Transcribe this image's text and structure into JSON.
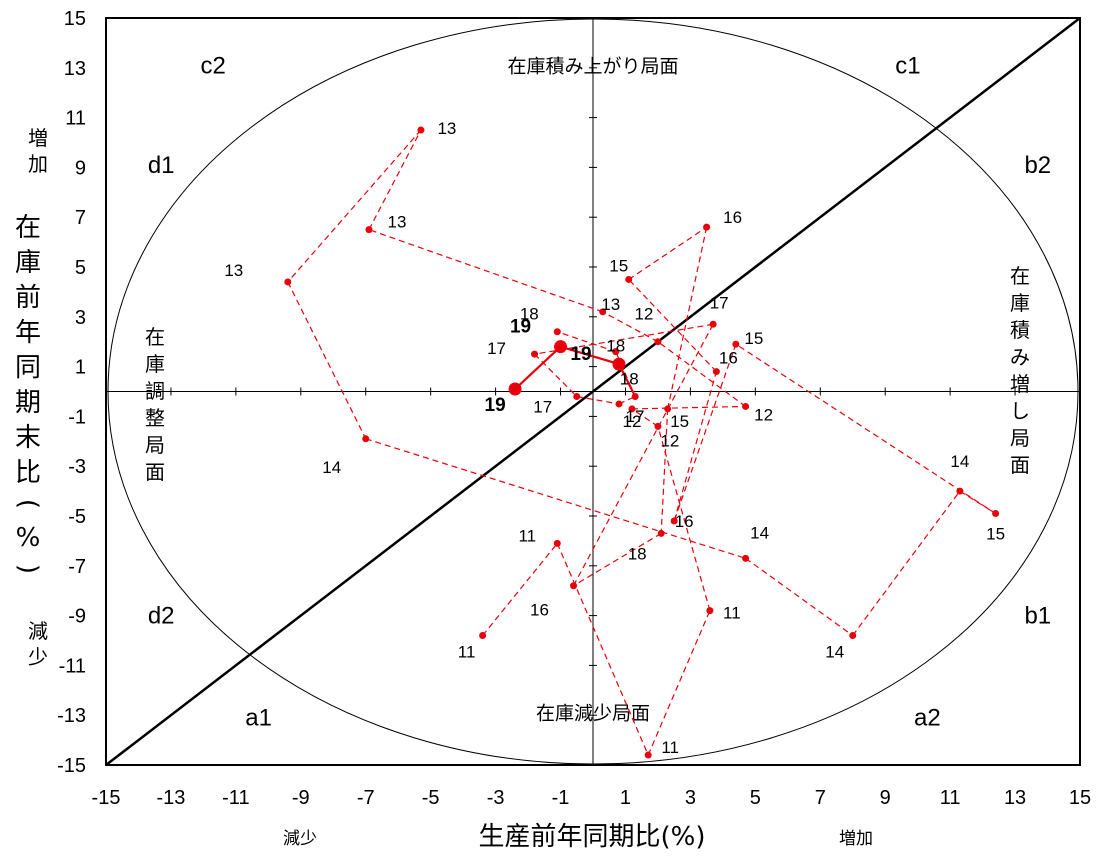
{
  "chart_data": {
    "type": "scatter",
    "title": "",
    "xlabel": "生産前年同期比(%)",
    "ylabel": "在庫前年同期末比(%)",
    "xlim": [
      -15,
      15
    ],
    "ylim": [
      -15,
      15
    ],
    "x_ticks": [
      "-15",
      "-13",
      "-11",
      "-9",
      "-7",
      "-5",
      "-3",
      "-1",
      "1",
      "3",
      "5",
      "7",
      "9",
      "11",
      "13",
      "15"
    ],
    "y_ticks": [
      "15",
      "13",
      "11",
      "9",
      "7",
      "5",
      "3",
      "1",
      "-1",
      "-3",
      "-5",
      "-7",
      "-9",
      "-11",
      "-13",
      "-15"
    ],
    "x_direction_labels": {
      "decrease": "減少",
      "increase": "増加"
    },
    "y_direction_labels": {
      "increase": "増加",
      "decrease": "減少"
    },
    "quadrant_labels": [
      "c2",
      "c1",
      "d1",
      "b2",
      "d2",
      "b1",
      "a1",
      "a2"
    ],
    "phase_labels": {
      "top": "在庫積み上がり局面",
      "bottom": "在庫減少局面",
      "left": "在庫調整局面",
      "right": "在庫積み増し局面"
    },
    "diagonal": {
      "from": [
        -15,
        -15
      ],
      "to": [
        15,
        15
      ]
    },
    "grid": false,
    "series_history": {
      "style": "dashed",
      "color": "#e8000b",
      "points": [
        {
          "x": -3.4,
          "y": -9.8,
          "label": "11"
        },
        {
          "x": -1.1,
          "y": -6.1,
          "label": "11"
        },
        {
          "x": 1.7,
          "y": -14.6,
          "label": "11"
        },
        {
          "x": 3.6,
          "y": -8.8,
          "label": "11"
        },
        {
          "x": 2.0,
          "y": -1.4,
          "label": "12"
        },
        {
          "x": 1.2,
          "y": -0.7,
          "label": "12"
        },
        {
          "x": 4.7,
          "y": -0.6,
          "label": "12"
        },
        {
          "x": 2.0,
          "y": 2.0,
          "label": "12"
        },
        {
          "x": 0.3,
          "y": 3.2,
          "label": "13"
        },
        {
          "x": -6.9,
          "y": 6.5,
          "label": "13"
        },
        {
          "x": -5.3,
          "y": 10.5,
          "label": "13"
        },
        {
          "x": -9.4,
          "y": 4.4,
          "label": "13"
        },
        {
          "x": -7.0,
          "y": -1.9,
          "label": "14"
        },
        {
          "x": 4.7,
          "y": -6.7,
          "label": "14"
        },
        {
          "x": 8.0,
          "y": -9.8,
          "label": "14"
        },
        {
          "x": 11.3,
          "y": -4.0,
          "label": "14"
        },
        {
          "x": 12.4,
          "y": -4.9,
          "label": "15"
        },
        {
          "x": 4.4,
          "y": 1.9,
          "label": "15"
        },
        {
          "x": 2.5,
          "y": -5.2,
          "label": "16"
        },
        {
          "x": 3.8,
          "y": 0.8,
          "label": "16"
        },
        {
          "x": 1.1,
          "y": 4.5,
          "label": "15"
        },
        {
          "x": 3.5,
          "y": 6.6,
          "label": "16"
        },
        {
          "x": 2.3,
          "y": -0.7,
          "label": "15"
        },
        {
          "x": 2.1,
          "y": -5.7,
          "label": "18"
        },
        {
          "x": -0.6,
          "y": -7.8,
          "label": "16"
        },
        {
          "x": 3.7,
          "y": 2.7,
          "label": "17"
        },
        {
          "x": -1.8,
          "y": 1.5,
          "label": "17"
        },
        {
          "x": -0.5,
          "y": -0.2,
          "label": "17"
        },
        {
          "x": 0.8,
          "y": -0.5,
          "label": "17"
        },
        {
          "x": 1.3,
          "y": -0.2,
          "label": "18"
        },
        {
          "x": 0.7,
          "y": 1.6,
          "label": "18"
        },
        {
          "x": -1.1,
          "y": 2.4,
          "label": "18"
        }
      ]
    },
    "series_recent": {
      "style": "solid",
      "color": "#e8000b",
      "points": [
        {
          "x": -2.4,
          "y": 0.1,
          "label": "19"
        },
        {
          "x": -1.0,
          "y": 1.8,
          "label": "19"
        },
        {
          "x": 0.8,
          "y": 1.1,
          "label": "19"
        },
        {
          "x": 1.3,
          "y": -0.2,
          "label": ""
        }
      ]
    }
  }
}
